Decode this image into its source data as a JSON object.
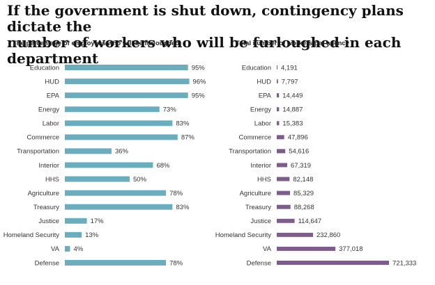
{
  "header": {
    "title_line1": "If the government is shut down, contingency plans dictate the",
    "title_line2": "number of workers who will be furloughed in each department"
  },
  "colors": {
    "left_bar": "#6aaebd",
    "right_bar": "#7f5a8e",
    "text": "#333333"
  },
  "chart_data": [
    {
      "type": "bar",
      "orientation": "horizontal",
      "title": "The percentage of employees who will be furloughed",
      "categories": [
        "Education",
        "HUD",
        "EPA",
        "Energy",
        "Labor",
        "Commerce",
        "Transportation",
        "Interior",
        "HHS",
        "Agriculture",
        "Treasury",
        "Justice",
        "Homeland Security",
        "VA",
        "Defense"
      ],
      "values": [
        95,
        96,
        95,
        73,
        83,
        87,
        36,
        68,
        50,
        78,
        83,
        17,
        13,
        4,
        78
      ],
      "value_labels": [
        "95%",
        "96%",
        "95%",
        "73%",
        "83%",
        "87%",
        "36%",
        "68%",
        "50%",
        "78%",
        "83%",
        "17%",
        "13%",
        "4%",
        "78%"
      ],
      "xlim": [
        0,
        100
      ]
    },
    {
      "type": "bar",
      "orientation": "horizontal",
      "title": "Total number of workers per agency",
      "categories": [
        "Education",
        "HUD",
        "EPA",
        "Energy",
        "Labor",
        "Commerce",
        "Transportation",
        "Interior",
        "HHS",
        "Agriculture",
        "Treasury",
        "Justice",
        "Homeland Security",
        "VA",
        "Defense"
      ],
      "values": [
        4191,
        7797,
        14449,
        14887,
        15383,
        47896,
        54616,
        67319,
        82148,
        85329,
        88268,
        114647,
        232860,
        377018,
        721333
      ],
      "value_labels": [
        "4,191",
        "7,797",
        "14,449",
        "14,887",
        "15,383",
        "47,896",
        "54,616",
        "67,319",
        "82,148",
        "85,329",
        "88,268",
        "114,647",
        "232,860",
        "377,018",
        "721,333"
      ],
      "xlim": [
        0,
        721333
      ]
    }
  ]
}
